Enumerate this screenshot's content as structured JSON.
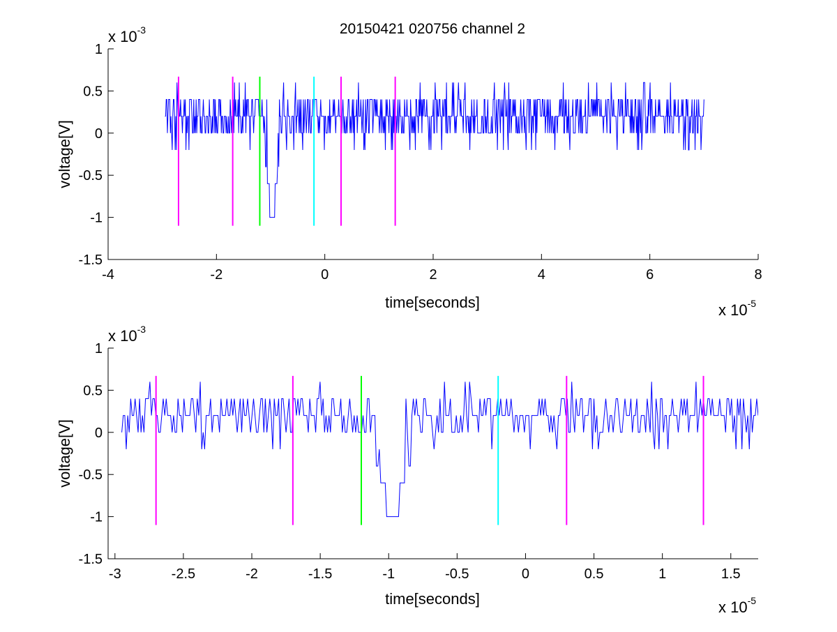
{
  "chart_data": {
    "title": "20150421 020756 channel 2",
    "colors": {
      "signal": "#0000ff",
      "magenta_marker": "#ff00ff",
      "green_marker": "#00ff00",
      "cyan_marker": "#00ffff",
      "axes": "#000000"
    },
    "plots": [
      {
        "id": "top",
        "type": "line",
        "xlabel": "time[seconds]",
        "ylabel": "voltage[V]",
        "x_exponent": "x 10",
        "x_exponent_power": "-5",
        "y_exponent": "x 10",
        "y_exponent_power": "-3",
        "xlim": [
          -4,
          8
        ],
        "ylim": [
          -1.5,
          1
        ],
        "x_ticks": [
          -4,
          -2,
          0,
          2,
          4,
          6,
          8
        ],
        "x_tick_labels": [
          "-4",
          "-2",
          "0",
          "2",
          "4",
          "6",
          "8"
        ],
        "y_ticks": [
          -1.5,
          -1,
          -0.5,
          0,
          0.5,
          1
        ],
        "y_tick_labels": [
          "-1.5",
          "-1",
          "-0.5",
          "0",
          "0.5",
          "1"
        ],
        "signal": {
          "x_start": -2.95,
          "x_end": 7.0,
          "baseline": [
            0,
            0.2,
            0.4
          ],
          "dip_at": -0.97,
          "dip_min": -1.0
        },
        "markers": [
          {
            "x": -2.7,
            "y_range": [
              -1.1,
              0.67
            ],
            "color": "#ff00ff"
          },
          {
            "x": -1.7,
            "y_range": [
              -1.1,
              0.67
            ],
            "color": "#ff00ff"
          },
          {
            "x": -1.2,
            "y_range": [
              -1.1,
              0.67
            ],
            "color": "#00ff00"
          },
          {
            "x": -0.2,
            "y_range": [
              -1.1,
              0.67
            ],
            "color": "#00ffff"
          },
          {
            "x": 0.3,
            "y_range": [
              -1.1,
              0.67
            ],
            "color": "#ff00ff"
          },
          {
            "x": 1.3,
            "y_range": [
              -1.1,
              0.67
            ],
            "color": "#ff00ff"
          }
        ]
      },
      {
        "id": "bottom",
        "type": "line",
        "xlabel": "time[seconds]",
        "ylabel": "voltage[V]",
        "x_exponent": "x 10",
        "x_exponent_power": "-5",
        "y_exponent": "x 10",
        "y_exponent_power": "-3",
        "xlim": [
          -3.05,
          1.7
        ],
        "ylim": [
          -1.5,
          1
        ],
        "x_ticks": [
          -3,
          -2.5,
          -2,
          -1.5,
          -1,
          -0.5,
          0,
          0.5,
          1,
          1.5
        ],
        "x_tick_labels": [
          "-3",
          "-2.5",
          "-2",
          "-1.5",
          "-1",
          "-0.5",
          "0",
          "0.5",
          "1",
          "1.5"
        ],
        "y_ticks": [
          -1.5,
          -1,
          -0.5,
          0,
          0.5,
          1
        ],
        "y_tick_labels": [
          "-1.5",
          "-1",
          "-0.5",
          "0",
          "0.5",
          "1"
        ],
        "signal": {
          "x_start": -2.95,
          "x_end": 1.7,
          "baseline": [
            0,
            0.2,
            0.4
          ],
          "dip_at": -0.97,
          "dip_min": -1.0
        },
        "markers": [
          {
            "x": -2.7,
            "y_range": [
              -1.1,
              0.67
            ],
            "color": "#ff00ff"
          },
          {
            "x": -1.7,
            "y_range": [
              -1.1,
              0.67
            ],
            "color": "#ff00ff"
          },
          {
            "x": -1.2,
            "y_range": [
              -1.1,
              0.67
            ],
            "color": "#00ff00"
          },
          {
            "x": -0.2,
            "y_range": [
              -1.1,
              0.67
            ],
            "color": "#00ffff"
          },
          {
            "x": 0.3,
            "y_range": [
              -1.1,
              0.67
            ],
            "color": "#ff00ff"
          },
          {
            "x": 1.3,
            "y_range": [
              -1.1,
              0.67
            ],
            "color": "#ff00ff"
          }
        ]
      }
    ]
  }
}
